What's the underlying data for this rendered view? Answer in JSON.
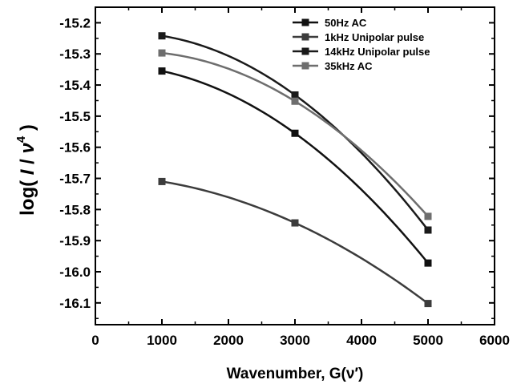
{
  "chart_data": {
    "type": "line",
    "title": "",
    "xlabel": "Wavenumber, G(ν′)",
    "ylabel_parts": [
      "log( ",
      "I",
      " / ",
      "ν",
      "4",
      " )"
    ],
    "xlim": [
      0,
      6000
    ],
    "ylim": [
      -16.17,
      -15.15
    ],
    "x_ticks": [
      0,
      1000,
      2000,
      3000,
      4000,
      5000,
      6000
    ],
    "y_ticks": [
      -16.1,
      -16.0,
      -15.9,
      -15.8,
      -15.7,
      -15.6,
      -15.5,
      -15.4,
      -15.3,
      -15.2
    ],
    "x_tick_labels": [
      "0",
      "1000",
      "2000",
      "3000",
      "4000",
      "5000",
      "6000"
    ],
    "y_tick_labels": [
      "-16.1",
      "-16.0",
      "-15.9",
      "-15.8",
      "-15.7",
      "-15.6",
      "-15.5",
      "-15.4",
      "-15.3",
      "-15.2"
    ],
    "legend_position": "top-right",
    "grid": false,
    "series": [
      {
        "name": "50Hz AC",
        "color": "#111111",
        "x": [
          1000,
          3000,
          5000
        ],
        "y": [
          -15.355,
          -15.555,
          -15.972
        ]
      },
      {
        "name": "1kHz Unipolar pulse",
        "color": "#3c3c3c",
        "x": [
          1000,
          3000,
          5000
        ],
        "y": [
          -15.71,
          -15.843,
          -16.102
        ]
      },
      {
        "name": "14kHz Unipolar pulse",
        "color": "#1a1a1a",
        "x": [
          1000,
          3000,
          5000
        ],
        "y": [
          -15.242,
          -15.432,
          -15.866
        ]
      },
      {
        "name": "35kHz AC",
        "color": "#6e6e6e",
        "x": [
          1000,
          3000,
          5000
        ],
        "y": [
          -15.297,
          -15.452,
          -15.822
        ]
      }
    ]
  }
}
